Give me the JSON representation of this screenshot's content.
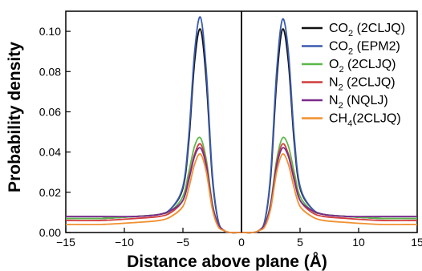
{
  "chart_data": {
    "type": "line",
    "title": "",
    "xlabel": "Distance above plane (Å)",
    "ylabel": "Probability density",
    "xlim": [
      -15,
      15
    ],
    "ylim": [
      0,
      0.11
    ],
    "xticks": [
      "−15",
      "−10",
      "−5",
      "0",
      "5",
      "10",
      "15"
    ],
    "yticks": [
      "0.00",
      "0.02",
      "0.04",
      "0.06",
      "0.08",
      "0.10"
    ],
    "vertical_line_x": 0,
    "legend_position": "top-right",
    "x": [
      -15,
      -12,
      -9,
      -7,
      -6,
      -5,
      -4.5,
      -4,
      -3.5,
      -3,
      -2.5,
      -2,
      -1.5,
      -1,
      0,
      1,
      1.5,
      2,
      2.5,
      3,
      3.5,
      4,
      4.5,
      5,
      6,
      7,
      9,
      12,
      15
    ],
    "series": [
      {
        "name": "CO",
        "sub": "2",
        "suffix": " (2CLJQ)",
        "color": "#111111",
        "values": [
          0.007,
          0.007,
          0.008,
          0.009,
          0.012,
          0.022,
          0.045,
          0.085,
          0.101,
          0.075,
          0.028,
          0.006,
          0.001,
          0,
          0,
          0,
          0.001,
          0.006,
          0.028,
          0.075,
          0.101,
          0.085,
          0.045,
          0.022,
          0.012,
          0.009,
          0.008,
          0.007,
          0.007
        ]
      },
      {
        "name": "CO",
        "sub": "2",
        "suffix": " (EPM2)",
        "color": "#3a5bb0",
        "values": [
          0.007,
          0.007,
          0.008,
          0.009,
          0.012,
          0.023,
          0.048,
          0.09,
          0.107,
          0.08,
          0.03,
          0.006,
          0.001,
          0,
          0,
          0,
          0.001,
          0.006,
          0.03,
          0.08,
          0.106,
          0.09,
          0.048,
          0.023,
          0.012,
          0.009,
          0.008,
          0.007,
          0.007
        ]
      },
      {
        "name": "O",
        "sub": "2",
        "suffix": " (2CLJQ)",
        "color": "#5cb84a",
        "values": [
          0.007,
          0.007,
          0.008,
          0.009,
          0.011,
          0.018,
          0.03,
          0.043,
          0.047,
          0.036,
          0.015,
          0.004,
          0.001,
          0,
          0,
          0,
          0.001,
          0.004,
          0.015,
          0.036,
          0.047,
          0.043,
          0.03,
          0.018,
          0.011,
          0.009,
          0.008,
          0.007,
          0.007
        ]
      },
      {
        "name": "N",
        "sub": "2",
        "suffix": " (2CLJQ)",
        "color": "#d23c3c",
        "values": [
          0.006,
          0.006,
          0.007,
          0.008,
          0.01,
          0.016,
          0.027,
          0.039,
          0.044,
          0.034,
          0.014,
          0.004,
          0.001,
          0,
          0,
          0,
          0.001,
          0.004,
          0.014,
          0.034,
          0.044,
          0.039,
          0.027,
          0.016,
          0.01,
          0.008,
          0.007,
          0.006,
          0.006
        ]
      },
      {
        "name": "N",
        "sub": "2",
        "suffix": " (NQLJ)",
        "color": "#7a2c8c",
        "values": [
          0.008,
          0.008,
          0.008,
          0.009,
          0.011,
          0.016,
          0.026,
          0.038,
          0.042,
          0.033,
          0.014,
          0.004,
          0.001,
          0,
          0,
          0,
          0.001,
          0.004,
          0.014,
          0.033,
          0.042,
          0.038,
          0.026,
          0.016,
          0.011,
          0.009,
          0.008,
          0.008,
          0.008
        ]
      },
      {
        "name": "CH",
        "sub": "4",
        "suffix": "(2CLJQ)",
        "color": "#f09030",
        "values": [
          0.004,
          0.004,
          0.005,
          0.006,
          0.008,
          0.013,
          0.022,
          0.034,
          0.039,
          0.03,
          0.012,
          0.003,
          0.001,
          0,
          0,
          0,
          0.001,
          0.003,
          0.012,
          0.03,
          0.039,
          0.034,
          0.022,
          0.013,
          0.008,
          0.006,
          0.005,
          0.004,
          0.004
        ]
      }
    ]
  }
}
